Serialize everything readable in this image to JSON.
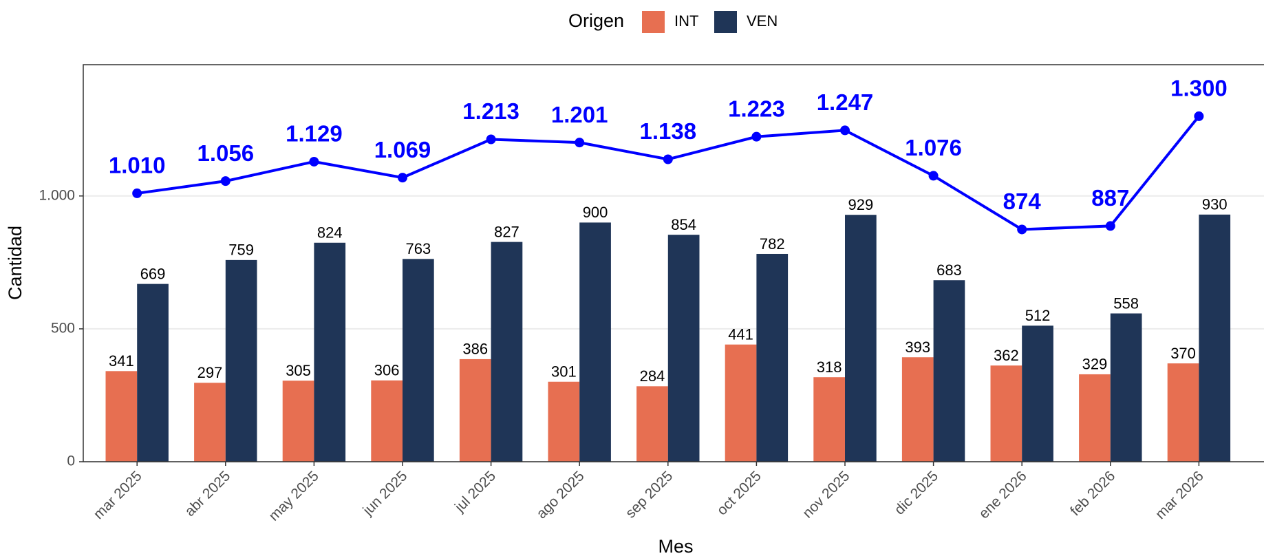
{
  "chart_data": {
    "type": "bar",
    "categories": [
      "mar 2025",
      "abr 2025",
      "may 2025",
      "jun 2025",
      "jul 2025",
      "ago 2025",
      "sep 2025",
      "oct 2025",
      "nov 2025",
      "dic 2025",
      "ene 2026",
      "feb 2026",
      "mar 2026"
    ],
    "series": [
      {
        "name": "INT",
        "color": "#e76f51",
        "values": [
          341,
          297,
          305,
          306,
          386,
          301,
          284,
          441,
          318,
          393,
          362,
          329,
          370
        ]
      },
      {
        "name": "VEN",
        "color": "#1f3557",
        "values": [
          669,
          759,
          824,
          763,
          827,
          900,
          854,
          782,
          929,
          683,
          512,
          558,
          930
        ]
      }
    ],
    "line": {
      "color": "#0000ff",
      "values": [
        1010,
        1056,
        1129,
        1069,
        1213,
        1201,
        1138,
        1223,
        1247,
        1076,
        874,
        887,
        1300
      ],
      "value_labels": [
        "1.010",
        "1.056",
        "1.129",
        "1.069",
        "1.213",
        "1.201",
        "1.138",
        "1.223",
        "1.247",
        "1.076",
        "874",
        "887",
        "1.300"
      ]
    },
    "legend_title": "Origen",
    "x_label": "Mes",
    "y_label": "Cantidad",
    "ylim": [
      0,
      1494
    ],
    "yticks": [
      0,
      500,
      {
        "value": 1000,
        "label": "1.000"
      }
    ],
    "grid": true,
    "legend_position": "top"
  }
}
